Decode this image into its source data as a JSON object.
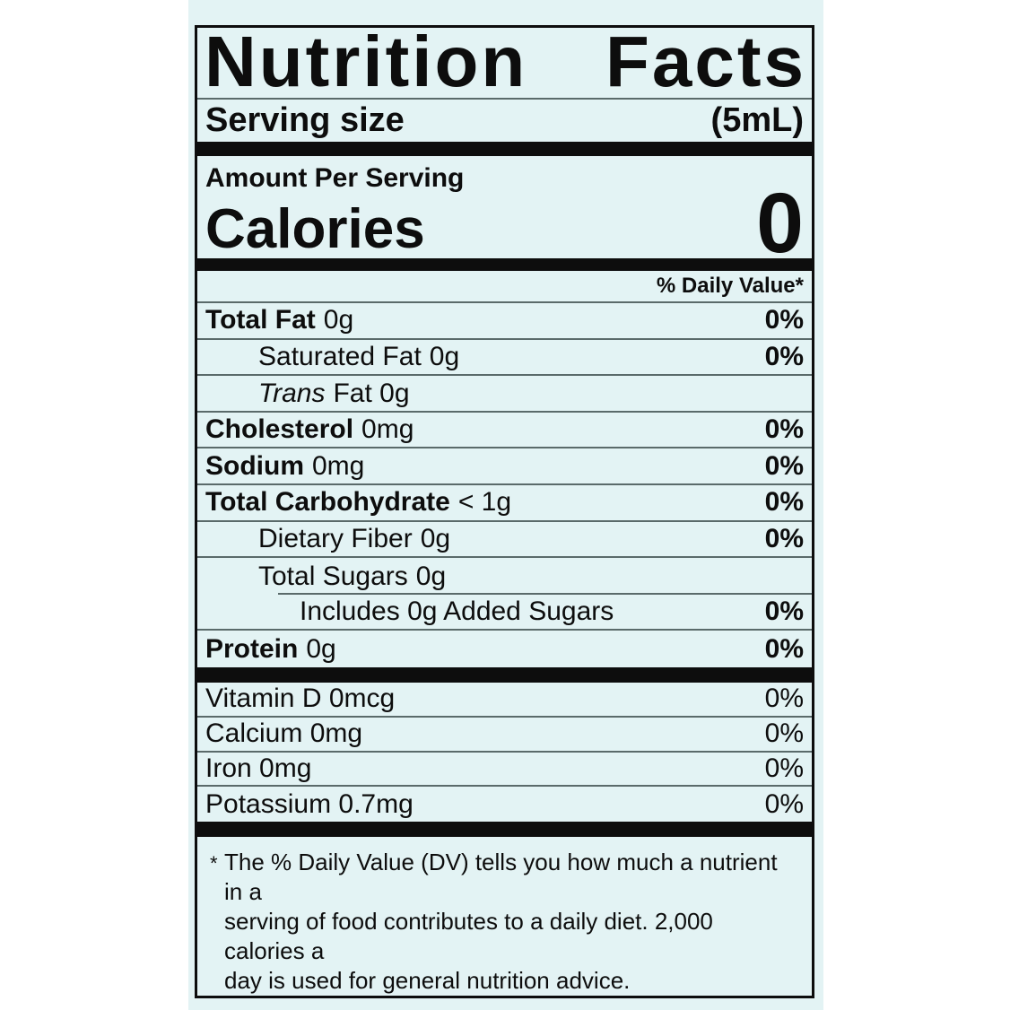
{
  "colors": {
    "page_bg": "#ffffff",
    "card_bg": "#e3f3f4",
    "ink": "#0d0d0d",
    "divider": "#5a6a6a"
  },
  "title": {
    "word1": "Nutrition",
    "word2": "Facts"
  },
  "serving": {
    "label": "Serving size",
    "value": "(5mL)"
  },
  "calories_section": {
    "heading": "Amount Per Serving",
    "label": "Calories",
    "value": "0"
  },
  "dv_header": "% Daily Value*",
  "nutrients": [
    {
      "name": "Total Fat",
      "amount": "0g",
      "dv": "0%"
    },
    {
      "name": "Saturated Fat",
      "amount": "0g",
      "dv": "0%"
    },
    {
      "name": "Trans",
      "amount": "Fat 0g",
      "dv": ""
    },
    {
      "name": "Cholesterol",
      "amount": "0mg",
      "dv": "0%"
    },
    {
      "name": "Sodium",
      "amount": "0mg",
      "dv": "0%"
    },
    {
      "name": "Total Carbohydrate",
      "amount": "< 1g",
      "dv": "0%"
    },
    {
      "name": "Dietary Fiber",
      "amount": "0g",
      "dv": "0%"
    },
    {
      "name": "Total Sugars",
      "amount": "0g",
      "dv": ""
    },
    {
      "name": "Includes 0g Added Sugars",
      "amount": "",
      "dv": "0%"
    },
    {
      "name": "Protein",
      "amount": "0g",
      "dv": "0%"
    }
  ],
  "vitamins": [
    {
      "name": "Vitamin D 0mcg",
      "dv": "0%"
    },
    {
      "name": "Calcium 0mg",
      "dv": "0%"
    },
    {
      "name": "Iron 0mg",
      "dv": "0%"
    },
    {
      "name": "Potassium 0.7mg",
      "dv": "0%"
    }
  ],
  "footnote": {
    "marker": "*",
    "lines": [
      "The % Daily Value (DV) tells you how much a nutrient in a",
      "serving of food contributes to a daily diet. 2,000 calories a",
      "day is used for general nutrition advice."
    ]
  }
}
